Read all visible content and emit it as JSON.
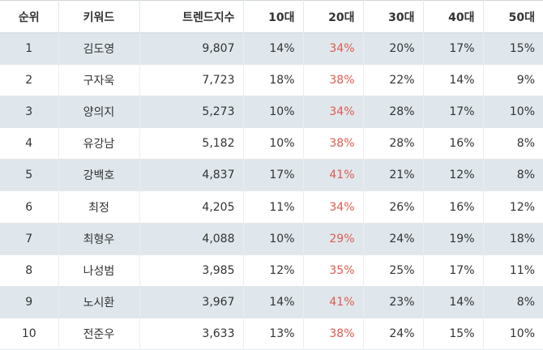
{
  "headers": {
    "rank": "순위",
    "keyword": "키워드",
    "trend_index": "트렌드지수",
    "age10": "10대",
    "age20": "20대",
    "age30": "30대",
    "age40": "40대",
    "age50": "50대"
  },
  "colors": {
    "stripe": "#dfe7ec",
    "highlight": "#e05a4f"
  },
  "rows": [
    {
      "rank": "1",
      "keyword": "김도영",
      "trend_index": "9,807",
      "age10": "14%",
      "age20": "34%",
      "age30": "20%",
      "age40": "17%",
      "age50": "15%"
    },
    {
      "rank": "2",
      "keyword": "구자욱",
      "trend_index": "7,723",
      "age10": "18%",
      "age20": "38%",
      "age30": "22%",
      "age40": "14%",
      "age50": "9%"
    },
    {
      "rank": "3",
      "keyword": "양의지",
      "trend_index": "5,273",
      "age10": "10%",
      "age20": "34%",
      "age30": "28%",
      "age40": "17%",
      "age50": "10%"
    },
    {
      "rank": "4",
      "keyword": "유강남",
      "trend_index": "5,182",
      "age10": "10%",
      "age20": "38%",
      "age30": "28%",
      "age40": "16%",
      "age50": "8%"
    },
    {
      "rank": "5",
      "keyword": "강백호",
      "trend_index": "4,837",
      "age10": "17%",
      "age20": "41%",
      "age30": "21%",
      "age40": "12%",
      "age50": "8%"
    },
    {
      "rank": "6",
      "keyword": "최정",
      "trend_index": "4,205",
      "age10": "11%",
      "age20": "34%",
      "age30": "26%",
      "age40": "16%",
      "age50": "12%"
    },
    {
      "rank": "7",
      "keyword": "최형우",
      "trend_index": "4,088",
      "age10": "10%",
      "age20": "29%",
      "age30": "24%",
      "age40": "19%",
      "age50": "18%"
    },
    {
      "rank": "8",
      "keyword": "나성범",
      "trend_index": "3,985",
      "age10": "12%",
      "age20": "35%",
      "age30": "25%",
      "age40": "17%",
      "age50": "11%"
    },
    {
      "rank": "9",
      "keyword": "노시환",
      "trend_index": "3,967",
      "age10": "14%",
      "age20": "41%",
      "age30": "23%",
      "age40": "14%",
      "age50": "8%"
    },
    {
      "rank": "10",
      "keyword": "전준우",
      "trend_index": "3,633",
      "age10": "13%",
      "age20": "38%",
      "age30": "24%",
      "age40": "15%",
      "age50": "10%"
    }
  ]
}
